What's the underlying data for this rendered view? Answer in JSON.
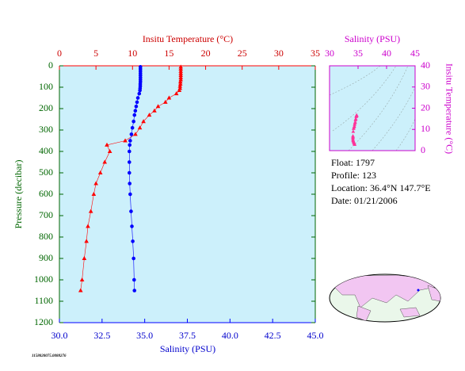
{
  "chart_data": [
    {
      "type": "profile",
      "x2label": "Insitu Temperature (°C)",
      "xlabel": "Salinity (PSU)",
      "ylabel": "Pressure (decibar)",
      "x2lim": [
        0,
        35
      ],
      "x2ticks": [
        0,
        5,
        10,
        15,
        20,
        25,
        30,
        35
      ],
      "xlim": [
        30,
        45
      ],
      "xticks": [
        {
          "value": 30,
          "label": "30.0"
        },
        {
          "value": 32.5,
          "label": "32.5"
        },
        {
          "value": 35,
          "label": "35.0"
        },
        {
          "value": 37.5,
          "label": "37.5"
        },
        {
          "value": 40,
          "label": "40.0"
        },
        {
          "value": 42.5,
          "label": "42.5"
        },
        {
          "value": 45,
          "label": "45.0"
        }
      ],
      "ylim": [
        0,
        1200
      ],
      "yticks": [
        0,
        100,
        200,
        300,
        400,
        500,
        600,
        700,
        800,
        900,
        1000,
        1100,
        1200
      ],
      "pressure": [
        5,
        15,
        25,
        35,
        45,
        55,
        65,
        75,
        85,
        95,
        105,
        115,
        130,
        150,
        170,
        190,
        210,
        230,
        260,
        290,
        320,
        350,
        370,
        400,
        450,
        500,
        550,
        600,
        680,
        750,
        820,
        900,
        1000,
        1050
      ],
      "series": [
        {
          "color": "#ff0000",
          "axis": "x2",
          "values": [
            16.6,
            16.6,
            16.6,
            16.6,
            16.6,
            16.6,
            16.6,
            16.55,
            16.55,
            16.5,
            16.5,
            16.4,
            16.0,
            15.0,
            14.5,
            13.5,
            13.0,
            12.3,
            11.5,
            11.0,
            10.4,
            9.0,
            6.5,
            6.9,
            6.2,
            5.6,
            5.0,
            4.7,
            4.3,
            3.9,
            3.7,
            3.4,
            3.1,
            2.9
          ]
        },
        {
          "color": "#0000ff",
          "axis": "x",
          "values": [
            34.75,
            34.75,
            34.75,
            34.75,
            34.75,
            34.75,
            34.75,
            34.75,
            34.74,
            34.74,
            34.73,
            34.72,
            34.68,
            34.6,
            34.55,
            34.5,
            34.45,
            34.4,
            34.35,
            34.28,
            34.22,
            34.15,
            34.12,
            34.1,
            34.1,
            34.1,
            34.12,
            34.15,
            34.2,
            34.25,
            34.3,
            34.35,
            34.38,
            34.4
          ]
        }
      ]
    },
    {
      "type": "ts",
      "xlabel": "Salinity (PSU)",
      "ylabel": "Insitu Temperature (°C)",
      "xlim": [
        30,
        45
      ],
      "xticks": [
        30,
        35,
        40,
        45
      ],
      "ylim": [
        0,
        40
      ],
      "yticks": [
        0,
        10,
        20,
        30,
        40
      ],
      "color": "#ff3399"
    }
  ],
  "info": {
    "lines": [
      "Float:  1797",
      "Profile:  123",
      "Location:  36.4°N  147.7°E",
      "Date:  01/21/2006"
    ]
  },
  "footnote": "1158020075.0088276"
}
